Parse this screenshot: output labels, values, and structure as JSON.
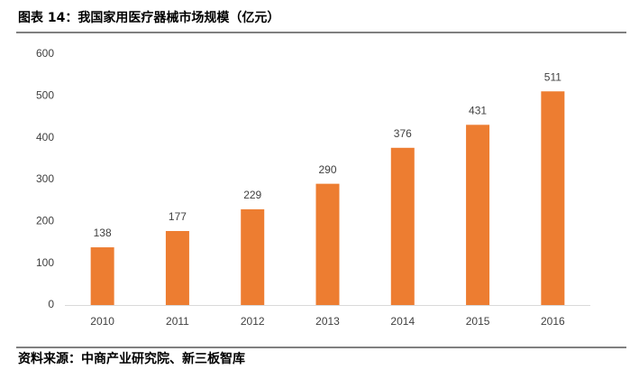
{
  "chart_data": {
    "type": "bar",
    "title": "图表 14：我国家用医疗器械市场规模（亿元）",
    "source": "资料来源：中商产业研究院、新三板智库",
    "categories": [
      "2010",
      "2011",
      "2012",
      "2013",
      "2014",
      "2015",
      "2016"
    ],
    "values": [
      138,
      177,
      229,
      290,
      376,
      431,
      511
    ],
    "color": "#ed7d31",
    "ylim": [
      0,
      600
    ],
    "yticks": [
      0,
      100,
      200,
      300,
      400,
      500,
      600
    ],
    "grid": false
  }
}
